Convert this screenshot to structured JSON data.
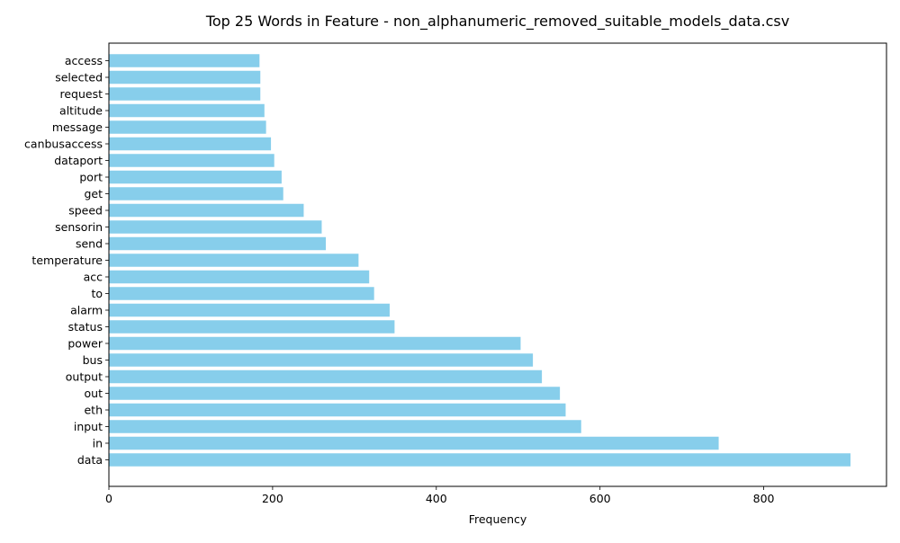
{
  "chart_data": {
    "type": "bar",
    "orientation": "horizontal",
    "title": "Top 25 Words in Feature - non_alphanumeric_removed_suitable_models_data.csv",
    "xlabel": "Frequency",
    "ylabel": "",
    "xlim": [
      0,
      950
    ],
    "xticks": [
      0,
      200,
      400,
      600,
      800
    ],
    "grid": false,
    "bar_color": "#87CEEB",
    "categories": [
      "data",
      "in",
      "input",
      "eth",
      "out",
      "output",
      "bus",
      "power",
      "status",
      "alarm",
      "to",
      "acc",
      "temperature",
      "send",
      "sensorin",
      "speed",
      "get",
      "port",
      "dataport",
      "canbusaccess",
      "message",
      "altitude",
      "request",
      "selected",
      "access"
    ],
    "values": [
      906,
      745,
      577,
      558,
      551,
      529,
      518,
      503,
      349,
      343,
      324,
      318,
      305,
      265,
      260,
      238,
      213,
      211,
      202,
      198,
      192,
      190,
      185,
      185,
      184
    ]
  }
}
